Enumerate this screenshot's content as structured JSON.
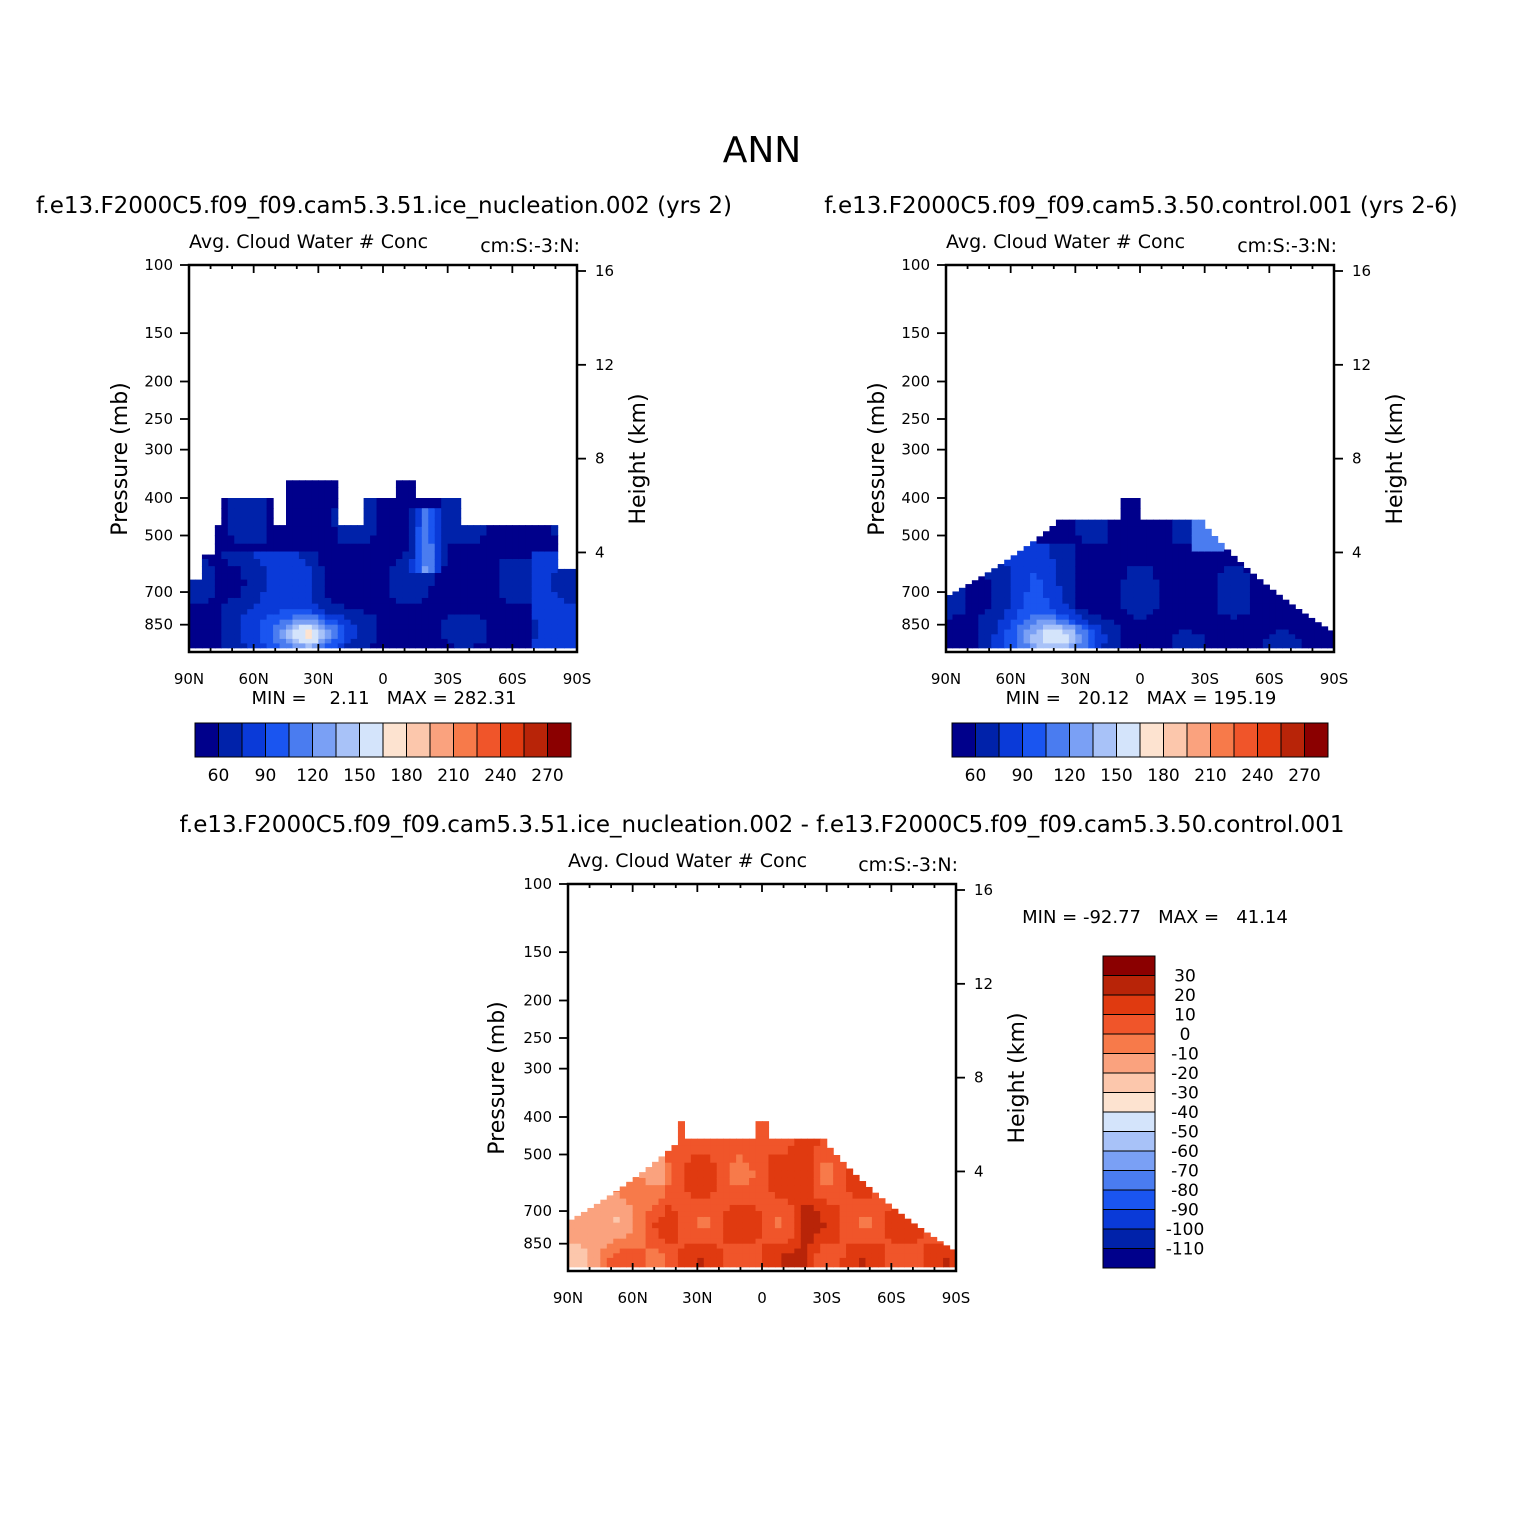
{
  "figure_title": "ANN",
  "colors": {
    "abs_palette": [
      "#00008b",
      "#0022aa",
      "#0a3ad8",
      "#1a55f0",
      "#4a7cf0",
      "#7aa0f5",
      "#a8c2f8",
      "#d4e4fb",
      "#fde3d0",
      "#fcc7ac",
      "#faa27e",
      "#f77a4a",
      "#f0552a",
      "#e03a10",
      "#b82408",
      "#8b0000"
    ],
    "diff_palette": [
      "#00008b",
      "#0022aa",
      "#0a3ad8",
      "#1a55f0",
      "#4a7cf0",
      "#7aa0f5",
      "#a8c2f8",
      "#d4e4fb",
      "#fde3d0",
      "#fcc7ac",
      "#faa27e",
      "#f77a4a",
      "#f0552a",
      "#e03a10",
      "#b82408",
      "#8b0000"
    ]
  },
  "chart_data": [
    {
      "type": "heatmap",
      "run_title": "f.e13.F2000C5.f09_f09.cam5.3.51.ice_nucleation.002 (yrs 2)",
      "subtitle_left": "Avg. Cloud Water # Conc",
      "subtitle_right": "cm:S:-3:N:",
      "ylabel": "Pressure (mb)",
      "ylabel_right": "Height (km)",
      "x_ticks": [
        "90N",
        "60N",
        "30N",
        "0",
        "30S",
        "60S",
        "90S"
      ],
      "y_ticks": [
        "100",
        "150",
        "200",
        "250",
        "300",
        "400",
        "500",
        "700",
        "850"
      ],
      "y_ticks_right": [
        "16",
        "12",
        "8",
        "4"
      ],
      "ylim": [
        1000,
        100
      ],
      "xlim": [
        "90N",
        "90S"
      ],
      "stats": "MIN =    2.11   MAX = 282.31",
      "min": 2.11,
      "max": 282.31,
      "colorbar_labels": [
        "60",
        "90",
        "120",
        "150",
        "180",
        "210",
        "240",
        "270"
      ]
    },
    {
      "type": "heatmap",
      "run_title": "f.e13.F2000C5.f09_f09.cam5.3.50.control.001 (yrs 2-6)",
      "subtitle_left": "Avg. Cloud Water # Conc",
      "subtitle_right": "cm:S:-3:N:",
      "ylabel": "Pressure (mb)",
      "ylabel_right": "Height (km)",
      "x_ticks": [
        "90N",
        "60N",
        "30N",
        "0",
        "30S",
        "60S",
        "90S"
      ],
      "y_ticks": [
        "100",
        "150",
        "200",
        "250",
        "300",
        "400",
        "500",
        "700",
        "850"
      ],
      "y_ticks_right": [
        "16",
        "12",
        "8",
        "4"
      ],
      "ylim": [
        1000,
        100
      ],
      "xlim": [
        "90N",
        "90S"
      ],
      "stats": "MIN =   20.12   MAX = 195.19",
      "min": 20.12,
      "max": 195.19,
      "colorbar_labels": [
        "60",
        "90",
        "120",
        "150",
        "180",
        "210",
        "240",
        "270"
      ]
    },
    {
      "type": "heatmap",
      "run_title": "f.e13.F2000C5.f09_f09.cam5.3.51.ice_nucleation.002 - f.e13.F2000C5.f09_f09.cam5.3.50.control.001",
      "subtitle_left": "Avg. Cloud Water # Conc",
      "subtitle_right": "cm:S:-3:N:",
      "ylabel": "Pressure (mb)",
      "ylabel_right": "Height (km)",
      "x_ticks": [
        "90N",
        "60N",
        "30N",
        "0",
        "30S",
        "60S",
        "90S"
      ],
      "y_ticks": [
        "100",
        "150",
        "200",
        "250",
        "300",
        "400",
        "500",
        "700",
        "850"
      ],
      "y_ticks_right": [
        "16",
        "12",
        "8",
        "4"
      ],
      "ylim": [
        1000,
        100
      ],
      "xlim": [
        "90N",
        "90S"
      ],
      "stats": "MIN = -92.77   MAX =   41.14",
      "min": -92.77,
      "max": 41.14,
      "colorbar_labels": [
        "30",
        "20",
        "10",
        "0",
        "-10",
        "-20",
        "-30",
        "-40",
        "-50",
        "-60",
        "-70",
        "-80",
        "-90",
        "-100",
        "-110"
      ]
    }
  ]
}
